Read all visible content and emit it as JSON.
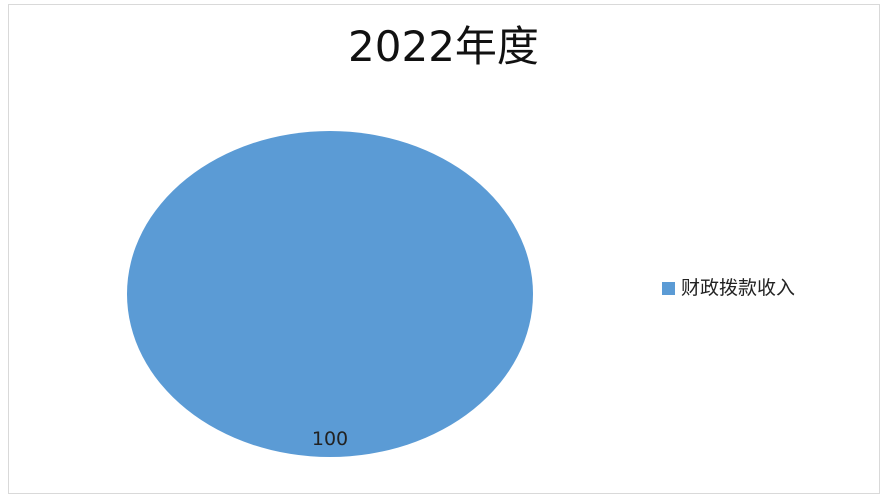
{
  "chart_data": {
    "type": "pie",
    "title": "2022年度",
    "categories": [
      "财政拨款收入"
    ],
    "values": [
      100
    ],
    "data_labels": [
      "100"
    ],
    "colors": [
      "#5b9bd5"
    ],
    "legend_position": "right"
  }
}
